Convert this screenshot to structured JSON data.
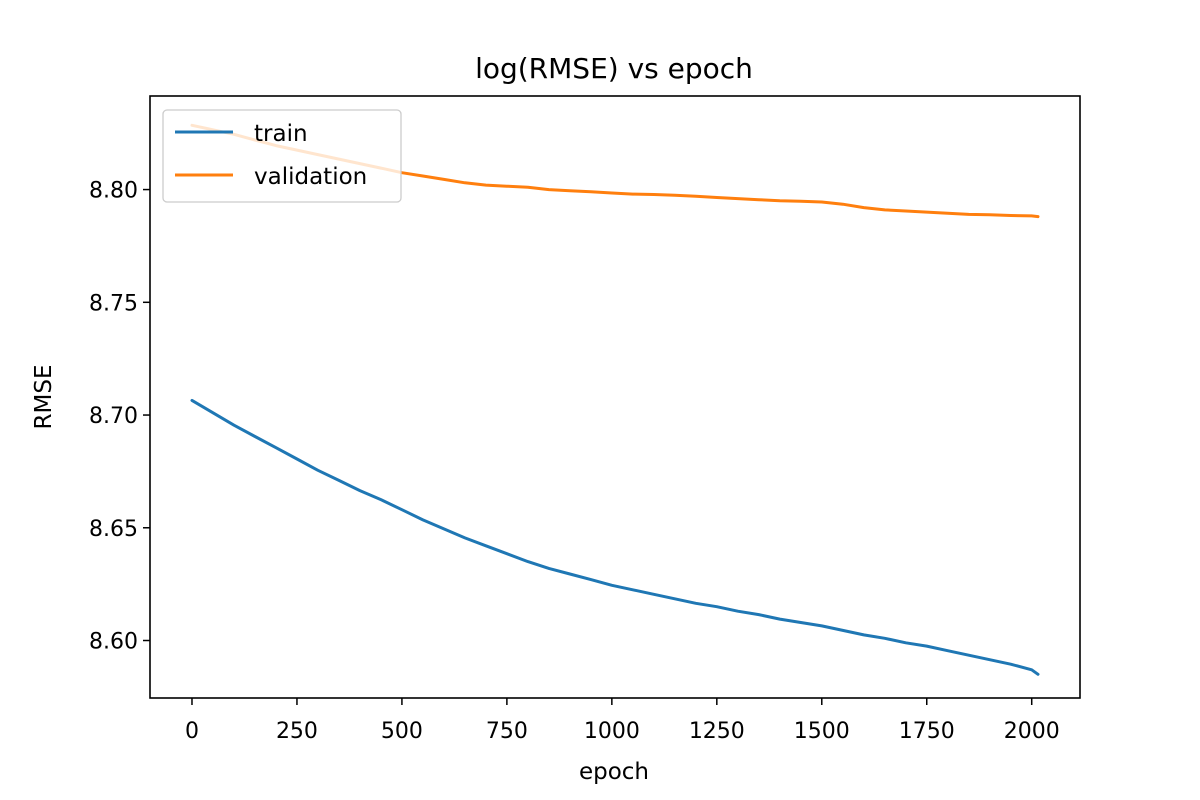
{
  "chart_data": {
    "type": "line",
    "title": "log(RMSE) vs epoch",
    "xlabel": "epoch",
    "ylabel": "RMSE",
    "xlim": [
      -100,
      2115
    ],
    "ylim": [
      8.5745,
      8.8415
    ],
    "xticks": [
      0,
      250,
      500,
      750,
      1000,
      1250,
      1500,
      1750,
      2000
    ],
    "xtick_labels": [
      "0",
      "250",
      "500",
      "750",
      "1000",
      "1250",
      "1500",
      "1750",
      "2000"
    ],
    "yticks": [
      8.6,
      8.65,
      8.7,
      8.75,
      8.8
    ],
    "ytick_labels": [
      "8.60",
      "8.65",
      "8.70",
      "8.75",
      "8.80"
    ],
    "grid": false,
    "legend_position": "top-left",
    "series": [
      {
        "name": "train",
        "color": "#1f77b4",
        "x": [
          0,
          50,
          100,
          150,
          200,
          250,
          300,
          350,
          400,
          450,
          500,
          550,
          600,
          650,
          700,
          750,
          800,
          850,
          900,
          950,
          1000,
          1050,
          1100,
          1150,
          1200,
          1250,
          1300,
          1350,
          1400,
          1450,
          1500,
          1550,
          1600,
          1650,
          1700,
          1750,
          1800,
          1850,
          1900,
          1950,
          2000,
          2015
        ],
        "values": [
          8.7065,
          8.701,
          8.6955,
          8.6905,
          8.6855,
          8.6805,
          8.6755,
          8.671,
          8.6665,
          8.6625,
          8.658,
          8.6535,
          8.6495,
          8.6455,
          8.642,
          8.6385,
          8.635,
          8.632,
          8.6295,
          8.627,
          8.6245,
          8.6225,
          8.6205,
          8.6185,
          8.6165,
          8.615,
          8.613,
          8.6115,
          8.6095,
          8.608,
          8.6065,
          8.6045,
          8.6025,
          8.601,
          8.599,
          8.5975,
          8.5955,
          8.5935,
          8.5915,
          8.5895,
          8.587,
          8.585
        ]
      },
      {
        "name": "validation",
        "color": "#ff7f0e",
        "x": [
          0,
          50,
          100,
          150,
          200,
          250,
          300,
          350,
          400,
          450,
          500,
          550,
          600,
          650,
          700,
          750,
          800,
          850,
          900,
          950,
          1000,
          1050,
          1100,
          1150,
          1200,
          1250,
          1300,
          1350,
          1400,
          1450,
          1500,
          1550,
          1600,
          1650,
          1700,
          1750,
          1800,
          1850,
          1900,
          1950,
          2000,
          2015
        ],
        "values": [
          8.8285,
          8.8265,
          8.8245,
          8.822,
          8.8195,
          8.8175,
          8.8155,
          8.8135,
          8.8115,
          8.8095,
          8.8075,
          8.806,
          8.8045,
          8.803,
          8.802,
          8.8015,
          8.801,
          8.8,
          8.7995,
          8.799,
          8.7985,
          8.798,
          8.7978,
          8.7975,
          8.797,
          8.7965,
          8.796,
          8.7955,
          8.795,
          8.7948,
          8.7945,
          8.7935,
          8.792,
          8.791,
          8.7905,
          8.79,
          8.7895,
          8.789,
          8.7888,
          8.7885,
          8.7883,
          8.788
        ]
      }
    ]
  }
}
